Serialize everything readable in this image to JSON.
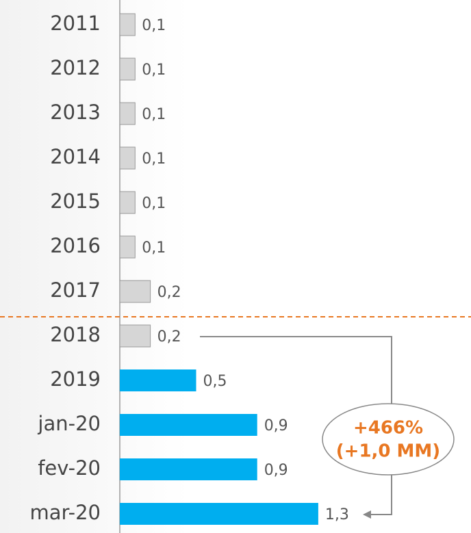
{
  "chart_data": {
    "type": "bar",
    "orientation": "horizontal",
    "categories": [
      "2011",
      "2012",
      "2013",
      "2014",
      "2015",
      "2016",
      "2017",
      "2018",
      "2019",
      "jan-20",
      "fev-20",
      "mar-20"
    ],
    "values": [
      0.1,
      0.1,
      0.1,
      0.1,
      0.1,
      0.1,
      0.2,
      0.2,
      0.5,
      0.9,
      0.9,
      1.3
    ],
    "value_labels": [
      "0,1",
      "0,1",
      "0,1",
      "0,1",
      "0,1",
      "0,1",
      "0,2",
      "0,2",
      "0,5",
      "0,9",
      "0,9",
      "1,3"
    ],
    "colors": [
      "#d6d6d6",
      "#d6d6d6",
      "#d6d6d6",
      "#d6d6d6",
      "#d6d6d6",
      "#d6d6d6",
      "#d6d6d6",
      "#d6d6d6",
      "#00aeef",
      "#00aeef",
      "#00aeef",
      "#00aeef"
    ],
    "annotation": [
      "+466%",
      "(+1,0 MM)"
    ]
  }
}
